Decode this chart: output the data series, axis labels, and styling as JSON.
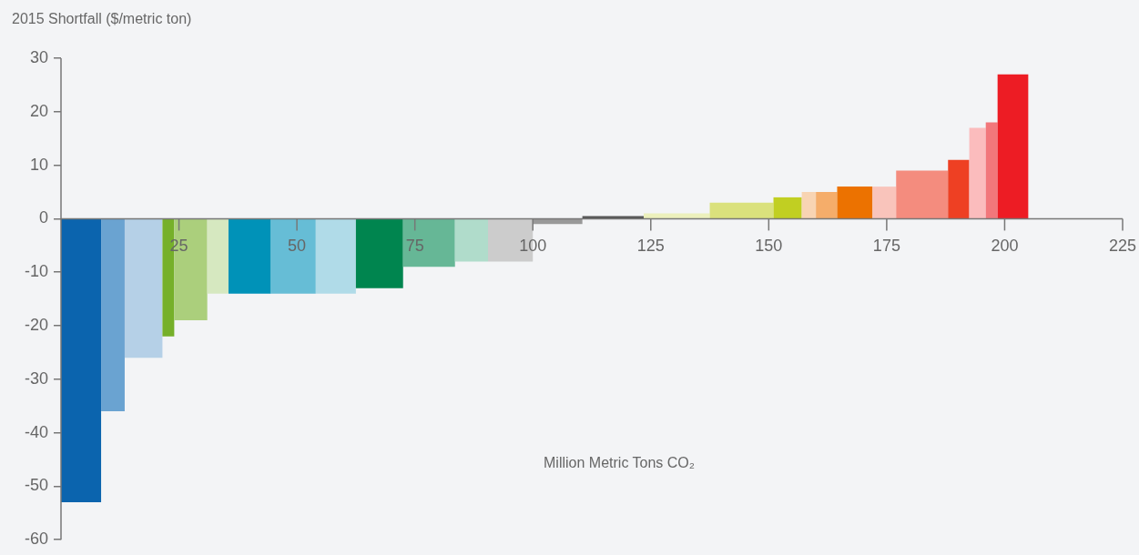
{
  "chart_data": {
    "type": "histogram",
    "ylabel": "2015 Shortfall ($/metric ton)",
    "xlabel": "Million Metric Tons CO₂",
    "bins": [
      0,
      8.5,
      13.5,
      21.5,
      24,
      31,
      35.5,
      44.5,
      54,
      62.5,
      72.5,
      83.5,
      90.5,
      100,
      110.5,
      123.5,
      137.5,
      151,
      157,
      160,
      164.5,
      172,
      177,
      188,
      192.5,
      196,
      198.5,
      205
    ],
    "values": [
      -53,
      -36,
      -26,
      -22,
      -19,
      -14,
      -14,
      -14,
      -14,
      -13,
      -9,
      -8,
      -8,
      -1,
      0.5,
      1,
      3,
      4,
      5,
      5,
      6,
      6,
      9,
      11,
      17,
      18,
      27
    ],
    "colors": [
      "#0b64ae",
      "#6aa3d1",
      "#b5d0e7",
      "#76b02a",
      "#abcf7c",
      "#d6e8c0",
      "#0092b8",
      "#66bdd6",
      "#b0dbe8",
      "#00854f",
      "#66b796",
      "#b0dccb",
      "#cccccc",
      "#999999",
      "#555555",
      "#ecf0bc",
      "#dae17c",
      "#c1cf22",
      "#f8d4b3",
      "#f5ad6a",
      "#ec7200",
      "#f9c4bb",
      "#f48c7e",
      "#ee4023",
      "#fbbcbd",
      "#f2777b",
      "#ed1c24"
    ],
    "xlim": [
      0,
      225
    ],
    "xticks": [
      25,
      50,
      75,
      100,
      125,
      150,
      175,
      200,
      225
    ],
    "ylim": [
      -60,
      30
    ],
    "yticks": [
      -60,
      -50,
      -40,
      -30,
      -20,
      -10,
      0,
      10,
      20,
      30
    ]
  }
}
